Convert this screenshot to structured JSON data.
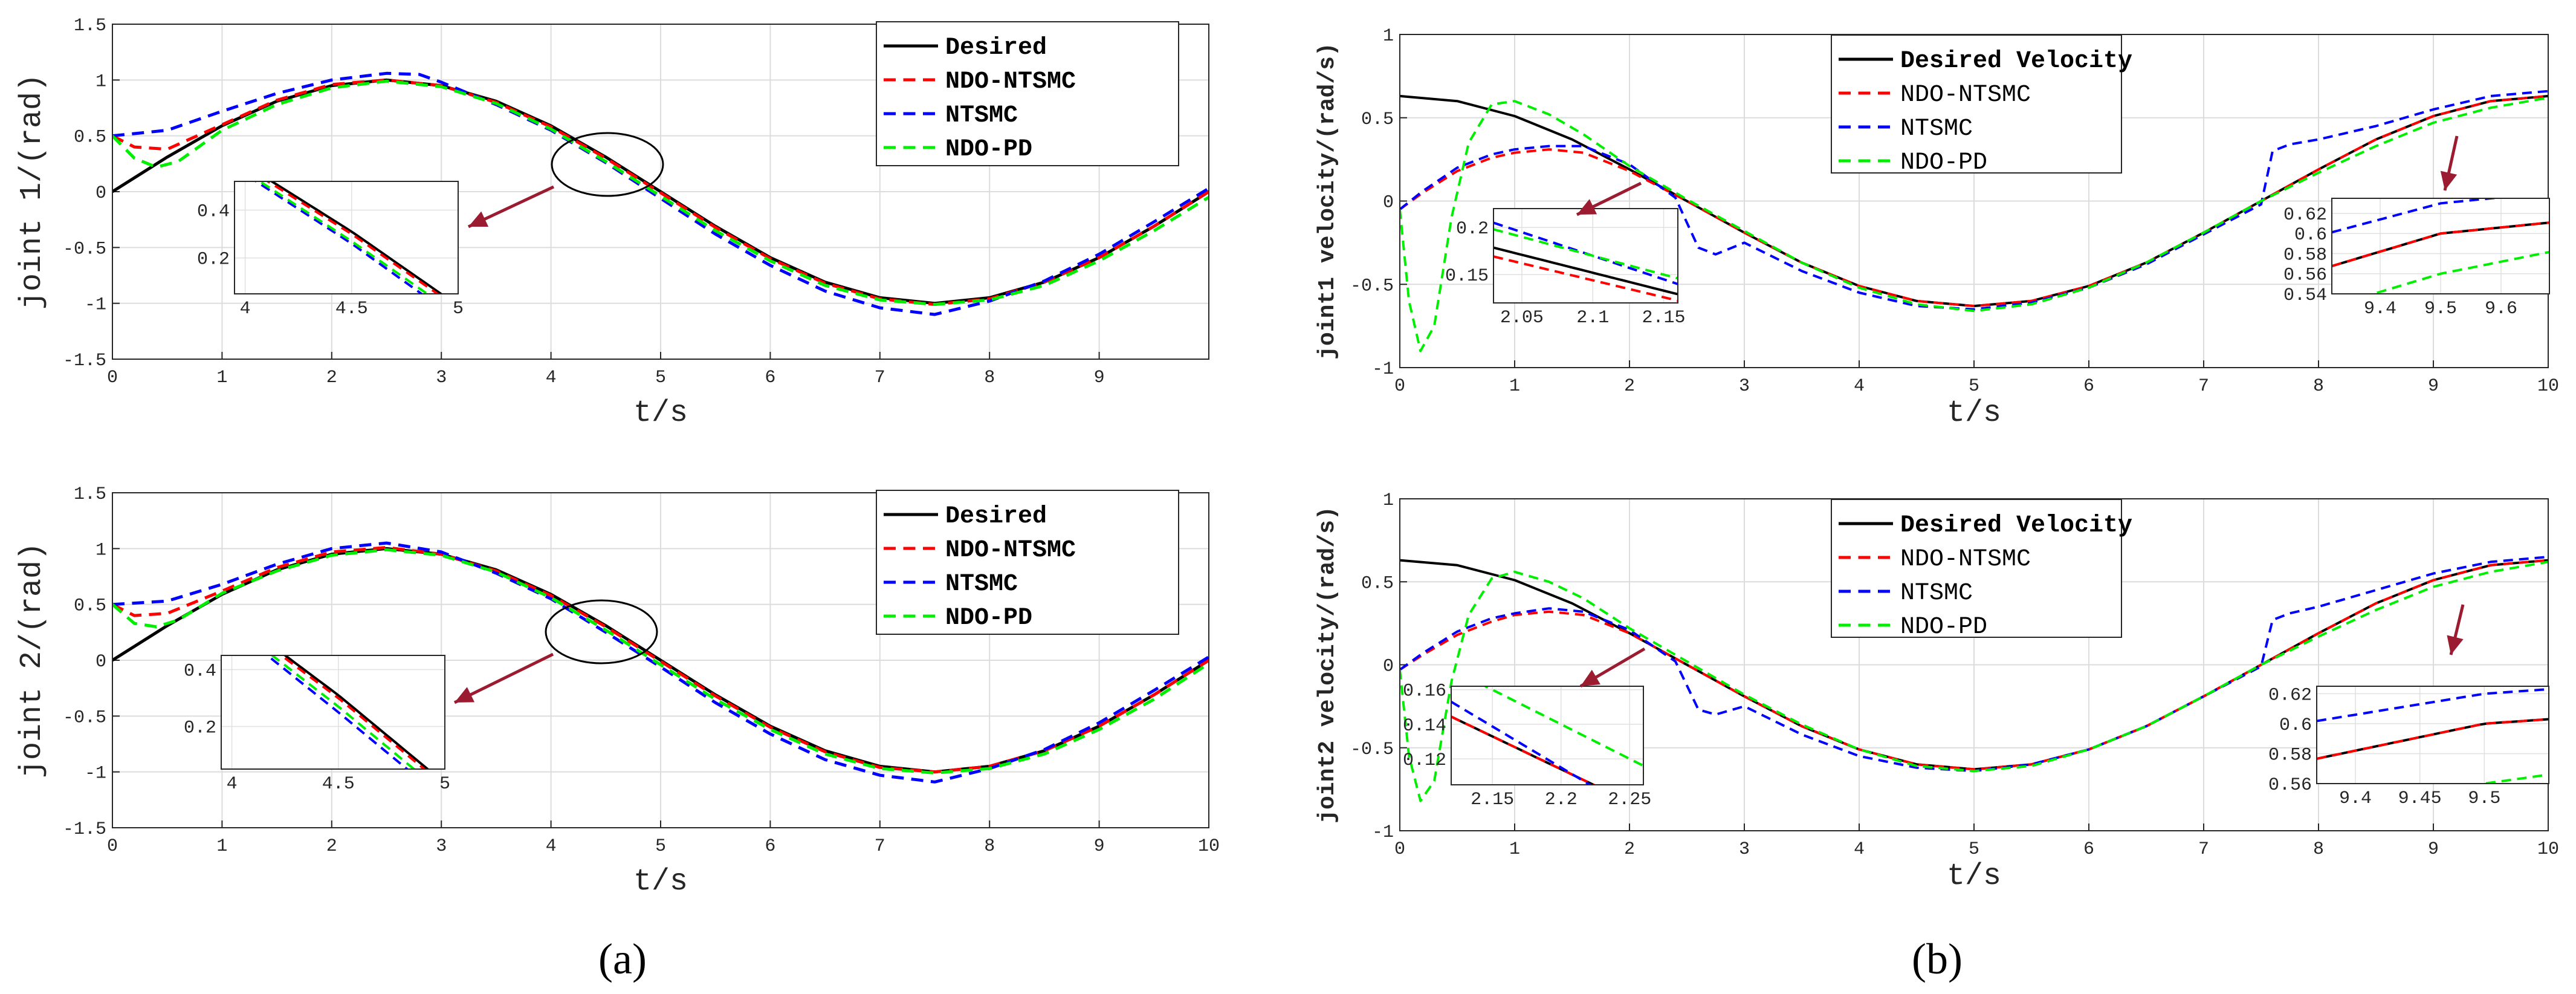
{
  "caption_a": "(a)",
  "caption_b": "(b)",
  "chart_data": [
    {
      "type": "line",
      "title": "",
      "xlabel": "t/s",
      "ylabel": "joint 1/(rad)",
      "xlim": [
        0,
        10
      ],
      "ylim": [
        -1.5,
        1.5
      ],
      "xticks": [
        "0",
        "1",
        "2",
        "3",
        "4",
        "5",
        "6",
        "7",
        "8",
        "9"
      ],
      "yticks": [
        "1.5",
        "1",
        "0.5",
        "0",
        "-0.5",
        "-1",
        "-1.5"
      ],
      "legend": [
        "Desired",
        "NDO-NTSMC",
        "NTSMC",
        "NDO-PD"
      ],
      "inset": {
        "xticks": [
          "4",
          "4.5",
          "5"
        ],
        "yticks": [
          "0.4",
          "0.2"
        ],
        "xlim": [
          3.95,
          5.0
        ],
        "ylim": [
          0.05,
          0.52
        ]
      },
      "series": [
        {
          "name": "Desired",
          "color": "#000000",
          "dash": "solid",
          "x": [
            0,
            0.5,
            1,
            1.5,
            2,
            2.5,
            3,
            3.5,
            4,
            4.5,
            5,
            5.5,
            6,
            6.5,
            7,
            7.5,
            8,
            8.5,
            9,
            9.5,
            10
          ],
          "y": [
            0,
            0.31,
            0.59,
            0.81,
            0.95,
            1.0,
            0.95,
            0.81,
            0.59,
            0.31,
            0,
            -0.31,
            -0.59,
            -0.81,
            -0.95,
            -1.0,
            -0.95,
            -0.81,
            -0.59,
            -0.31,
            0
          ]
        },
        {
          "name": "NDO-NTSMC",
          "color": "#ff0000",
          "dash": "dash",
          "x": [
            0,
            0.2,
            0.5,
            1,
            1.5,
            2,
            2.5,
            3,
            3.5,
            4,
            4.5,
            5,
            5.5,
            6,
            6.5,
            7,
            7.5,
            8,
            8.5,
            9,
            9.5,
            10
          ],
          "y": [
            0.5,
            0.4,
            0.38,
            0.6,
            0.82,
            0.96,
            1.0,
            0.95,
            0.8,
            0.58,
            0.3,
            -0.01,
            -0.32,
            -0.6,
            -0.82,
            -0.96,
            -1.01,
            -0.96,
            -0.81,
            -0.59,
            -0.31,
            0
          ]
        },
        {
          "name": "NTSMC",
          "color": "#0000ff",
          "dash": "dash",
          "x": [
            0,
            0.5,
            1,
            1.5,
            2,
            2.5,
            2.8,
            3,
            3.5,
            4,
            4.5,
            5,
            5.5,
            6,
            6.5,
            7,
            7.5,
            8,
            8.5,
            9,
            9.5,
            10
          ],
          "y": [
            0.5,
            0.55,
            0.72,
            0.88,
            1.0,
            1.06,
            1.05,
            0.98,
            0.78,
            0.55,
            0.26,
            -0.06,
            -0.38,
            -0.66,
            -0.89,
            -1.04,
            -1.1,
            -0.98,
            -0.8,
            -0.56,
            -0.27,
            0.03
          ]
        },
        {
          "name": "NDO-PD",
          "color": "#00ee00",
          "dash": "dash",
          "x": [
            0,
            0.2,
            0.4,
            0.6,
            1,
            1.5,
            2,
            2.5,
            3,
            3.5,
            4,
            4.5,
            5,
            5.5,
            6,
            6.5,
            7,
            7.5,
            8,
            8.5,
            9,
            9.5,
            10
          ],
          "y": [
            0.5,
            0.3,
            0.22,
            0.27,
            0.55,
            0.78,
            0.93,
            0.99,
            0.94,
            0.79,
            0.56,
            0.27,
            -0.04,
            -0.35,
            -0.62,
            -0.84,
            -0.97,
            -1.01,
            -0.97,
            -0.84,
            -0.62,
            -0.35,
            -0.05
          ]
        }
      ]
    },
    {
      "type": "line",
      "title": "",
      "xlabel": "t/s",
      "ylabel": "joint 2/(rad)",
      "xlim": [
        0,
        10
      ],
      "ylim": [
        -1.5,
        1.5
      ],
      "xticks": [
        "0",
        "1",
        "2",
        "3",
        "4",
        "5",
        "6",
        "7",
        "8",
        "9",
        "10"
      ],
      "yticks": [
        "1.5",
        "1",
        "0.5",
        "0",
        "-0.5",
        "-1",
        "-1.5"
      ],
      "legend": [
        "Desired",
        "NDO-NTSMC",
        "NTSMC",
        "NDO-PD"
      ],
      "inset": {
        "xticks": [
          "4",
          "4.5",
          "5"
        ],
        "yticks": [
          "0.4",
          "0.2"
        ],
        "xlim": [
          3.95,
          5.0
        ],
        "ylim": [
          0.05,
          0.45
        ]
      },
      "series": [
        {
          "name": "Desired",
          "color": "#000000",
          "dash": "solid",
          "x": [
            0,
            0.5,
            1,
            1.5,
            2,
            2.5,
            3,
            3.5,
            4,
            4.5,
            5,
            5.5,
            6,
            6.5,
            7,
            7.5,
            8,
            8.5,
            9,
            9.5,
            10
          ],
          "y": [
            0,
            0.31,
            0.59,
            0.81,
            0.95,
            1.0,
            0.95,
            0.81,
            0.59,
            0.31,
            0,
            -0.31,
            -0.59,
            -0.81,
            -0.95,
            -1.0,
            -0.95,
            -0.81,
            -0.59,
            -0.31,
            0
          ]
        },
        {
          "name": "NDO-NTSMC",
          "color": "#ff0000",
          "dash": "dash",
          "x": [
            0,
            0.2,
            0.5,
            1,
            1.5,
            2,
            2.5,
            3,
            3.5,
            4,
            4.5,
            5,
            5.5,
            6,
            6.5,
            7,
            7.5,
            8,
            8.5,
            9,
            9.5,
            10
          ],
          "y": [
            0.5,
            0.4,
            0.42,
            0.62,
            0.83,
            0.97,
            1.01,
            0.95,
            0.8,
            0.58,
            0.3,
            -0.01,
            -0.32,
            -0.6,
            -0.82,
            -0.96,
            -1.0,
            -0.95,
            -0.81,
            -0.59,
            -0.31,
            0
          ]
        },
        {
          "name": "NTSMC",
          "color": "#0000ff",
          "dash": "dash",
          "x": [
            0,
            0.5,
            1,
            1.5,
            2,
            2.5,
            3,
            3.5,
            4,
            4.5,
            5,
            5.5,
            6,
            6.5,
            7,
            7.5,
            8,
            8.5,
            9,
            9.5,
            10
          ],
          "y": [
            0.5,
            0.53,
            0.68,
            0.86,
            1.0,
            1.05,
            0.97,
            0.78,
            0.55,
            0.25,
            -0.06,
            -0.38,
            -0.66,
            -0.89,
            -1.03,
            -1.09,
            -0.97,
            -0.8,
            -0.56,
            -0.27,
            0.03
          ]
        },
        {
          "name": "NDO-PD",
          "color": "#00ee00",
          "dash": "dash",
          "x": [
            0,
            0.2,
            0.4,
            0.6,
            1,
            1.5,
            2,
            2.5,
            3,
            3.5,
            4,
            4.5,
            5,
            5.5,
            6,
            6.5,
            7,
            7.5,
            8,
            8.5,
            9,
            9.5,
            10
          ],
          "y": [
            0.5,
            0.33,
            0.3,
            0.36,
            0.6,
            0.8,
            0.94,
            0.99,
            0.94,
            0.79,
            0.56,
            0.27,
            -0.04,
            -0.35,
            -0.62,
            -0.84,
            -0.97,
            -1.01,
            -0.97,
            -0.84,
            -0.62,
            -0.35,
            -0.03
          ]
        }
      ]
    },
    {
      "type": "line",
      "title": "",
      "xlabel": "t/s",
      "ylabel": "joint1 velocity/(rad/s)",
      "xlim": [
        0,
        10
      ],
      "ylim": [
        -1,
        1
      ],
      "xticks": [
        "0",
        "1",
        "2",
        "3",
        "4",
        "5",
        "6",
        "7",
        "8",
        "9",
        "10"
      ],
      "yticks": [
        "1",
        "0.5",
        "0",
        "-0.5",
        "-1"
      ],
      "legend": [
        "Desired Velocity",
        "NDO-NTSMC",
        "NTSMC",
        "NDO-PD"
      ],
      "inset1": {
        "xticks": [
          "2.05",
          "2.1",
          "2.15"
        ],
        "yticks": [
          "0.2",
          "0.15"
        ],
        "xlim": [
          2.03,
          2.16
        ],
        "ylim": [
          0.12,
          0.22
        ]
      },
      "inset2": {
        "xticks": [
          "9.4",
          "9.5",
          "9.6"
        ],
        "yticks": [
          "0.62",
          "0.6",
          "0.58",
          "0.56",
          "0.54"
        ],
        "xlim": [
          9.32,
          9.68
        ],
        "ylim": [
          0.54,
          0.635
        ]
      },
      "series": [
        {
          "name": "Desired Velocity",
          "color": "#000000",
          "dash": "solid",
          "x": [
            0,
            0.5,
            1,
            1.5,
            2,
            2.5,
            3,
            3.5,
            4,
            4.5,
            5,
            5.5,
            6,
            6.5,
            7,
            7.5,
            8,
            8.5,
            9,
            9.5,
            10
          ],
          "y": [
            0.63,
            0.6,
            0.51,
            0.37,
            0.19,
            0,
            -0.19,
            -0.37,
            -0.51,
            -0.6,
            -0.63,
            -0.6,
            -0.51,
            -0.37,
            -0.19,
            0,
            0.19,
            0.37,
            0.51,
            0.6,
            0.63
          ]
        },
        {
          "name": "NDO-NTSMC",
          "color": "#ff0000",
          "dash": "dash",
          "x": [
            0,
            0.2,
            0.5,
            0.8,
            1,
            1.3,
            1.6,
            2,
            2.5,
            3,
            3.5,
            4,
            4.5,
            5,
            5.5,
            6,
            6.5,
            7,
            7.5,
            8,
            8.5,
            9,
            9.5,
            10
          ],
          "y": [
            -0.05,
            0.05,
            0.18,
            0.26,
            0.29,
            0.31,
            0.29,
            0.18,
            0,
            -0.19,
            -0.37,
            -0.51,
            -0.6,
            -0.63,
            -0.6,
            -0.51,
            -0.37,
            -0.19,
            0,
            0.19,
            0.37,
            0.51,
            0.6,
            0.63
          ]
        },
        {
          "name": "NTSMC",
          "color": "#0000ff",
          "dash": "dash",
          "x": [
            0,
            0.2,
            0.5,
            0.8,
            1,
            1.3,
            1.6,
            2,
            2.4,
            2.6,
            2.75,
            3,
            3.5,
            4,
            4.5,
            5,
            5.5,
            6,
            6.5,
            7,
            7.5,
            7.6,
            7.75,
            8,
            8.5,
            9,
            9.5,
            10
          ],
          "y": [
            -0.05,
            0.06,
            0.2,
            0.28,
            0.31,
            0.33,
            0.33,
            0.22,
            0.02,
            -0.28,
            -0.32,
            -0.25,
            -0.42,
            -0.55,
            -0.63,
            -0.65,
            -0.61,
            -0.52,
            -0.38,
            -0.2,
            -0.02,
            0.3,
            0.34,
            0.37,
            0.45,
            0.55,
            0.63,
            0.66
          ]
        },
        {
          "name": "NDO-PD",
          "color": "#00ee00",
          "dash": "dash",
          "x": [
            0,
            0.08,
            0.18,
            0.3,
            0.45,
            0.6,
            0.8,
            1,
            1.3,
            1.6,
            2,
            2.5,
            3,
            3.5,
            4,
            4.5,
            5,
            5.5,
            6,
            6.5,
            7,
            7.5,
            8,
            8.5,
            9,
            9.5,
            10
          ],
          "y": [
            -0.05,
            -0.6,
            -0.9,
            -0.75,
            -0.1,
            0.35,
            0.58,
            0.6,
            0.52,
            0.4,
            0.21,
            0.01,
            -0.18,
            -0.37,
            -0.52,
            -0.62,
            -0.66,
            -0.62,
            -0.52,
            -0.37,
            -0.19,
            0,
            0.17,
            0.33,
            0.47,
            0.56,
            0.62
          ]
        }
      ]
    },
    {
      "type": "line",
      "title": "",
      "xlabel": "t/s",
      "ylabel": "joint2 velocity/(rad/s)",
      "xlim": [
        0,
        10
      ],
      "ylim": [
        -1,
        1
      ],
      "xticks": [
        "0",
        "1",
        "2",
        "3",
        "4",
        "5",
        "6",
        "7",
        "8",
        "9",
        "10"
      ],
      "yticks": [
        "1",
        "0.5",
        "0",
        "-0.5",
        "-1"
      ],
      "legend": [
        "Desired Velocity",
        "NDO-NTSMC",
        "NTSMC",
        "NDO-PD"
      ],
      "inset1": {
        "xticks": [
          "2.15",
          "2.2",
          "2.25"
        ],
        "yticks": [
          "0.16",
          "0.14",
          "0.12"
        ],
        "xlim": [
          2.12,
          2.26
        ],
        "ylim": [
          0.105,
          0.162
        ]
      },
      "inset2": {
        "xticks": [
          "9.4",
          "9.45",
          "9.5"
        ],
        "yticks": [
          "0.62",
          "0.6",
          "0.58",
          "0.56"
        ],
        "xlim": [
          9.37,
          9.55
        ],
        "ylim": [
          0.56,
          0.625
        ]
      },
      "series": [
        {
          "name": "Desired Velocity",
          "color": "#000000",
          "dash": "solid",
          "x": [
            0,
            0.5,
            1,
            1.5,
            2,
            2.5,
            3,
            3.5,
            4,
            4.5,
            5,
            5.5,
            6,
            6.5,
            7,
            7.5,
            8,
            8.5,
            9,
            9.5,
            10
          ],
          "y": [
            0.63,
            0.6,
            0.51,
            0.37,
            0.19,
            0,
            -0.19,
            -0.37,
            -0.51,
            -0.6,
            -0.63,
            -0.6,
            -0.51,
            -0.37,
            -0.19,
            0,
            0.19,
            0.37,
            0.51,
            0.6,
            0.63
          ]
        },
        {
          "name": "NDO-NTSMC",
          "color": "#ff0000",
          "dash": "dash",
          "x": [
            0,
            0.2,
            0.5,
            0.8,
            1,
            1.3,
            1.6,
            2,
            2.5,
            3,
            3.5,
            4,
            4.5,
            5,
            5.5,
            6,
            6.5,
            7,
            7.5,
            8,
            8.5,
            9,
            9.5,
            10
          ],
          "y": [
            -0.03,
            0.06,
            0.18,
            0.26,
            0.3,
            0.32,
            0.3,
            0.19,
            0,
            -0.19,
            -0.37,
            -0.51,
            -0.6,
            -0.63,
            -0.6,
            -0.51,
            -0.37,
            -0.19,
            0,
            0.19,
            0.37,
            0.51,
            0.6,
            0.63
          ]
        },
        {
          "name": "NTSMC",
          "color": "#0000ff",
          "dash": "dash",
          "x": [
            0,
            0.2,
            0.5,
            0.8,
            1,
            1.3,
            1.6,
            2,
            2.4,
            2.6,
            2.75,
            3,
            3.5,
            4,
            4.5,
            5,
            5.5,
            6,
            6.5,
            7,
            7.5,
            7.6,
            7.75,
            8,
            8.5,
            9,
            9.5,
            10
          ],
          "y": [
            -0.03,
            0.07,
            0.2,
            0.28,
            0.31,
            0.34,
            0.32,
            0.21,
            0.02,
            -0.27,
            -0.3,
            -0.25,
            -0.42,
            -0.55,
            -0.62,
            -0.64,
            -0.6,
            -0.51,
            -0.37,
            -0.19,
            -0.01,
            0.27,
            0.31,
            0.35,
            0.45,
            0.55,
            0.62,
            0.65
          ]
        },
        {
          "name": "NDO-PD",
          "color": "#00ee00",
          "dash": "dash",
          "x": [
            0,
            0.08,
            0.18,
            0.3,
            0.45,
            0.6,
            0.8,
            1,
            1.3,
            1.6,
            2,
            2.5,
            3,
            3.5,
            4,
            4.5,
            5,
            5.5,
            6,
            6.5,
            7,
            7.5,
            8,
            8.5,
            9,
            9.5,
            10
          ],
          "y": [
            -0.03,
            -0.55,
            -0.82,
            -0.7,
            -0.1,
            0.3,
            0.52,
            0.56,
            0.5,
            0.4,
            0.22,
            0.02,
            -0.18,
            -0.36,
            -0.51,
            -0.61,
            -0.64,
            -0.61,
            -0.51,
            -0.37,
            -0.19,
            0,
            0.17,
            0.33,
            0.47,
            0.56,
            0.62
          ]
        }
      ]
    }
  ]
}
